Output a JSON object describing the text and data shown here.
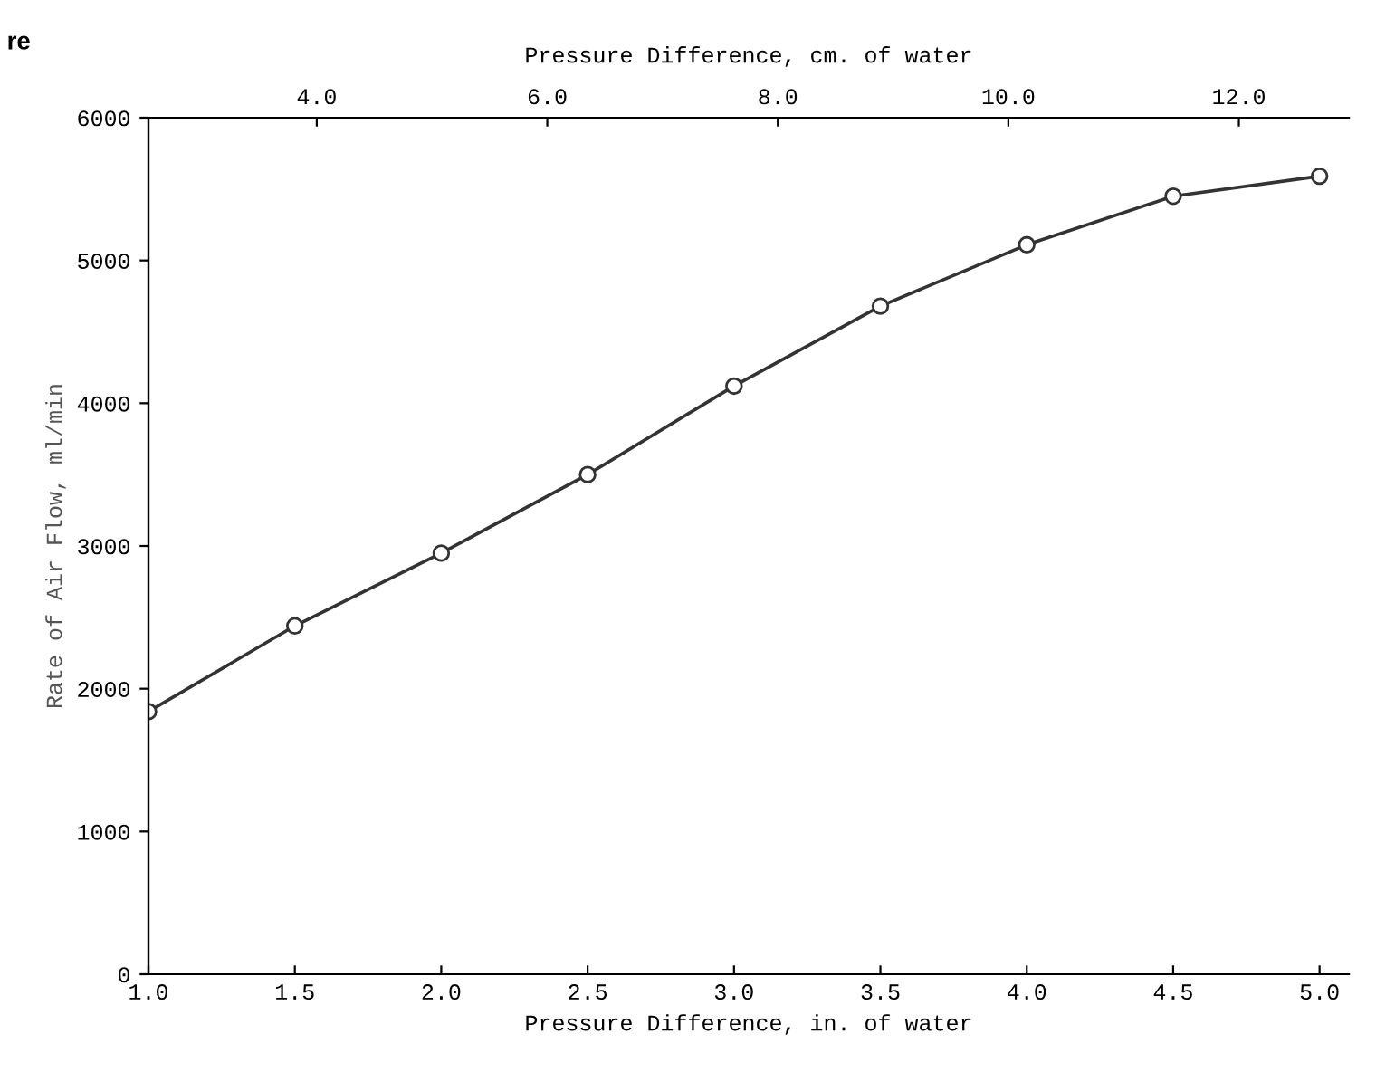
{
  "chart_data": {
    "type": "line",
    "xlabel": "Pressure Difference, in. of water",
    "x2label": "Pressure Difference, cm. of water",
    "ylabel": "Rate of Air Flow, ml/min",
    "annotations": [
      "re"
    ],
    "x": [
      1.0,
      1.5,
      2.0,
      2.5,
      3.0,
      3.5,
      4.0,
      4.5,
      5.0
    ],
    "series": [
      {
        "color": "#333333",
        "values": [
          1840,
          2440,
          2950,
          3500,
          4120,
          4680,
          5110,
          5450,
          5590
        ]
      }
    ],
    "marker": "circle",
    "line_style": "solid",
    "grid": false,
    "legend": false,
    "xlim": [
      1.0,
      5.1
    ],
    "xticks": [
      {
        "value": 1.0,
        "label": "1.0"
      },
      1.5,
      {
        "value": 2.0,
        "label": "2.0"
      },
      2.5,
      {
        "value": 3.0,
        "label": "3.0"
      },
      3.5,
      {
        "value": 4.0,
        "label": "4.0"
      },
      4.5,
      {
        "value": 5.0,
        "label": "5.0"
      }
    ],
    "x2lim": [
      2.54,
      12.954
    ],
    "x2ticks": [
      {
        "value": 4,
        "label": "4.0"
      },
      {
        "value": 6,
        "label": "6.0"
      },
      {
        "value": 8,
        "label": "8.0"
      },
      {
        "value": 10,
        "label": "10.0"
      },
      {
        "value": 12,
        "label": "12.0"
      }
    ],
    "ylim": [
      0,
      6000
    ],
    "yticks": [
      0,
      1000,
      2000,
      3000,
      4000,
      5000,
      6000
    ]
  }
}
